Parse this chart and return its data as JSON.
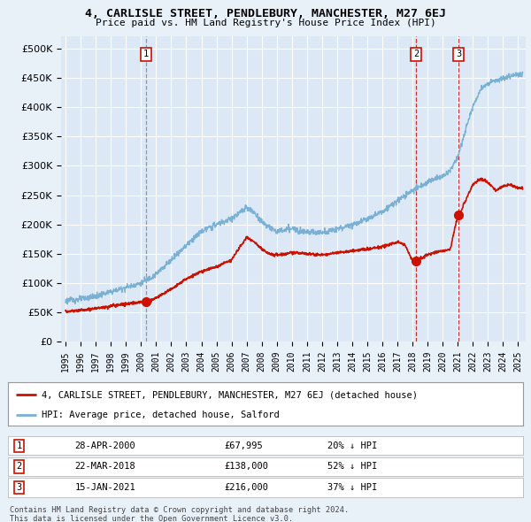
{
  "title": "4, CARLISLE STREET, PENDLEBURY, MANCHESTER, M27 6EJ",
  "subtitle": "Price paid vs. HM Land Registry's House Price Index (HPI)",
  "bg_color": "#e8f0f8",
  "plot_bg_color": "#dce8f5",
  "grid_color": "#ffffff",
  "hpi_color": "#7ab0d4",
  "price_color": "#cc1100",
  "ylim": [
    0,
    520000
  ],
  "yticks": [
    0,
    50000,
    100000,
    150000,
    200000,
    250000,
    300000,
    350000,
    400000,
    450000,
    500000
  ],
  "xlim_start": 1994.7,
  "xlim_end": 2025.5,
  "legend_line1": "4, CARLISLE STREET, PENDLEBURY, MANCHESTER, M27 6EJ (detached house)",
  "legend_line2": "HPI: Average price, detached house, Salford",
  "table_rows": [
    {
      "num": "1",
      "date": "28-APR-2000",
      "price": "£67,995",
      "pct": "20% ↓ HPI"
    },
    {
      "num": "2",
      "date": "22-MAR-2018",
      "price": "£138,000",
      "pct": "52% ↓ HPI"
    },
    {
      "num": "3",
      "date": "15-JAN-2021",
      "price": "£216,000",
      "pct": "37% ↓ HPI"
    }
  ],
  "footnote1": "Contains HM Land Registry data © Crown copyright and database right 2024.",
  "footnote2": "This data is licensed under the Open Government Licence v3.0."
}
